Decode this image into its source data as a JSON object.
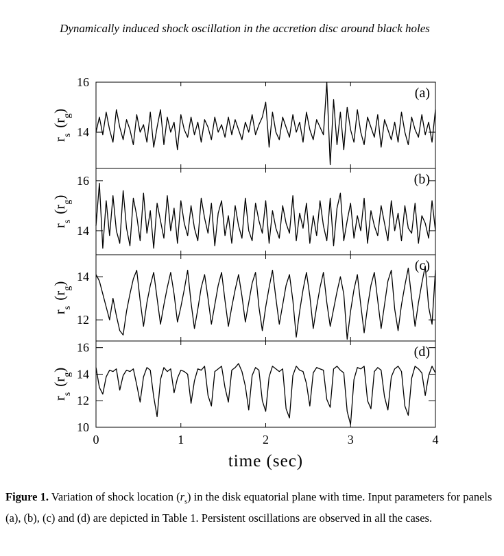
{
  "header": {
    "title": "Dynamically induced shock oscillation in the accretion disc around black holes"
  },
  "chart_data": [
    {
      "type": "line",
      "label": "(a)",
      "ylabel": [
        "r",
        "s",
        "(r",
        "g",
        ")"
      ],
      "xlim": [
        0,
        4
      ],
      "xticks": [
        0,
        1,
        2,
        3,
        4
      ],
      "ylim": [
        12.55,
        16
      ],
      "yticks": [
        14,
        16
      ],
      "x": [
        0,
        0.04,
        0.08,
        0.12,
        0.16,
        0.2,
        0.24,
        0.28,
        0.32,
        0.36,
        0.4,
        0.44,
        0.48,
        0.52,
        0.56,
        0.6,
        0.64,
        0.68,
        0.72,
        0.76,
        0.8,
        0.84,
        0.88,
        0.92,
        0.96,
        1,
        1.04,
        1.08,
        1.12,
        1.16,
        1.2,
        1.24,
        1.28,
        1.32,
        1.36,
        1.4,
        1.44,
        1.48,
        1.52,
        1.56,
        1.6,
        1.64,
        1.68,
        1.72,
        1.76,
        1.8,
        1.84,
        1.88,
        1.92,
        1.96,
        2,
        2.04,
        2.08,
        2.12,
        2.16,
        2.2,
        2.24,
        2.28,
        2.32,
        2.36,
        2.4,
        2.44,
        2.48,
        2.52,
        2.56,
        2.6,
        2.64,
        2.68,
        2.72,
        2.76,
        2.8,
        2.84,
        2.88,
        2.92,
        2.96,
        3,
        3.04,
        3.08,
        3.12,
        3.16,
        3.2,
        3.24,
        3.28,
        3.32,
        3.36,
        3.4,
        3.44,
        3.48,
        3.52,
        3.56,
        3.6,
        3.64,
        3.68,
        3.72,
        3.76,
        3.8,
        3.84,
        3.88,
        3.92,
        3.96,
        4
      ],
      "series": [
        {
          "color": "#000000",
          "values": [
            14.0,
            14.6,
            13.9,
            14.8,
            14.1,
            13.6,
            14.9,
            14.2,
            13.7,
            14.5,
            14.1,
            13.5,
            14.7,
            14.0,
            14.3,
            13.6,
            14.8,
            13.4,
            14.2,
            14.9,
            13.5,
            14.6,
            14.0,
            14.4,
            13.3,
            14.7,
            14.1,
            13.8,
            14.6,
            13.9,
            14.4,
            13.6,
            14.5,
            14.2,
            13.7,
            14.6,
            14.0,
            14.3,
            13.8,
            14.6,
            13.9,
            14.5,
            14.1,
            13.7,
            14.4,
            14.0,
            14.7,
            13.9,
            14.3,
            14.6,
            15.2,
            13.4,
            14.8,
            14.0,
            13.7,
            14.6,
            14.2,
            13.8,
            14.7,
            14.0,
            14.4,
            13.6,
            14.8,
            14.1,
            13.7,
            14.5,
            14.2,
            13.9,
            16.0,
            12.7,
            15.3,
            13.5,
            14.8,
            13.3,
            15.0,
            14.1,
            13.6,
            14.9,
            14.0,
            13.5,
            14.6,
            14.2,
            13.8,
            14.7,
            13.4,
            14.5,
            14.1,
            13.7,
            14.4,
            13.6,
            14.8,
            14.0,
            13.5,
            14.6,
            14.1,
            13.8,
            14.7,
            13.9,
            14.4,
            13.6,
            14.9
          ]
        }
      ]
    },
    {
      "type": "line",
      "label": "(b)",
      "ylabel": [
        "r",
        "s",
        "(r",
        "g",
        ")"
      ],
      "xlim": [
        0,
        4
      ],
      "xticks": [
        0,
        1,
        2,
        3,
        4
      ],
      "ylim": [
        13.04,
        16.49
      ],
      "yticks": [
        14,
        16
      ],
      "x": [
        0,
        0.04,
        0.08,
        0.12,
        0.16,
        0.2,
        0.24,
        0.28,
        0.32,
        0.36,
        0.4,
        0.44,
        0.48,
        0.52,
        0.56,
        0.6,
        0.64,
        0.68,
        0.72,
        0.76,
        0.8,
        0.84,
        0.88,
        0.92,
        0.96,
        1,
        1.04,
        1.08,
        1.12,
        1.16,
        1.2,
        1.24,
        1.28,
        1.32,
        1.36,
        1.4,
        1.44,
        1.48,
        1.52,
        1.56,
        1.6,
        1.64,
        1.68,
        1.72,
        1.76,
        1.8,
        1.84,
        1.88,
        1.92,
        1.96,
        2,
        2.04,
        2.08,
        2.12,
        2.16,
        2.2,
        2.24,
        2.28,
        2.32,
        2.36,
        2.4,
        2.44,
        2.48,
        2.52,
        2.56,
        2.6,
        2.64,
        2.68,
        2.72,
        2.76,
        2.8,
        2.84,
        2.88,
        2.92,
        2.96,
        3,
        3.04,
        3.08,
        3.12,
        3.16,
        3.2,
        3.24,
        3.28,
        3.32,
        3.36,
        3.4,
        3.44,
        3.48,
        3.52,
        3.56,
        3.6,
        3.64,
        3.68,
        3.72,
        3.76,
        3.8,
        3.84,
        3.88,
        3.92,
        3.96,
        4
      ],
      "series": [
        {
          "color": "#000000",
          "values": [
            14.2,
            15.9,
            13.3,
            15.2,
            13.8,
            15.4,
            14.0,
            13.5,
            15.6,
            14.1,
            13.4,
            15.3,
            14.6,
            13.6,
            15.5,
            13.9,
            14.8,
            13.3,
            15.1,
            14.4,
            13.7,
            15.4,
            14.0,
            14.9,
            13.5,
            15.2,
            14.3,
            13.8,
            15.0,
            14.1,
            13.6,
            15.3,
            14.5,
            13.9,
            15.1,
            13.4,
            14.7,
            15.2,
            13.8,
            14.6,
            13.5,
            15.0,
            14.2,
            13.7,
            15.3,
            14.0,
            13.6,
            15.1,
            14.4,
            13.9,
            15.2,
            13.5,
            14.8,
            14.1,
            13.7,
            15.0,
            14.3,
            13.9,
            15.4,
            13.6,
            14.7,
            14.1,
            15.1,
            13.5,
            14.6,
            13.8,
            15.2,
            14.2,
            13.6,
            15.3,
            13.4,
            14.9,
            15.5,
            13.6,
            14.4,
            15.1,
            13.7,
            14.6,
            14.0,
            15.3,
            13.5,
            14.8,
            14.2,
            13.8,
            15.0,
            14.3,
            13.6,
            15.2,
            14.0,
            14.7,
            13.6,
            15.0,
            14.1,
            13.9,
            15.1,
            13.5,
            14.6,
            14.3,
            13.7,
            15.2,
            14.0
          ]
        }
      ]
    },
    {
      "type": "line",
      "label": "(c)",
      "ylabel": [
        "r",
        "s",
        "(r",
        "g",
        ")"
      ],
      "xlim": [
        0,
        4
      ],
      "xticks": [
        0,
        1,
        2,
        3,
        4
      ],
      "ylim": [
        11.02,
        15.02
      ],
      "yticks": [
        12,
        14
      ],
      "x": [
        0,
        0.04,
        0.08,
        0.12,
        0.16,
        0.2,
        0.24,
        0.28,
        0.32,
        0.36,
        0.4,
        0.44,
        0.48,
        0.52,
        0.56,
        0.6,
        0.64,
        0.68,
        0.72,
        0.76,
        0.8,
        0.84,
        0.88,
        0.92,
        0.96,
        1,
        1.04,
        1.08,
        1.12,
        1.16,
        1.2,
        1.24,
        1.28,
        1.32,
        1.36,
        1.4,
        1.44,
        1.48,
        1.52,
        1.56,
        1.6,
        1.64,
        1.68,
        1.72,
        1.76,
        1.8,
        1.84,
        1.88,
        1.92,
        1.96,
        2,
        2.04,
        2.08,
        2.12,
        2.16,
        2.2,
        2.24,
        2.28,
        2.32,
        2.36,
        2.4,
        2.44,
        2.48,
        2.52,
        2.56,
        2.6,
        2.64,
        2.68,
        2.72,
        2.76,
        2.8,
        2.84,
        2.88,
        2.92,
        2.96,
        3,
        3.04,
        3.08,
        3.12,
        3.16,
        3.2,
        3.24,
        3.28,
        3.32,
        3.36,
        3.4,
        3.44,
        3.48,
        3.52,
        3.56,
        3.6,
        3.64,
        3.68,
        3.72,
        3.76,
        3.8,
        3.84,
        3.88,
        3.92,
        3.96,
        4
      ],
      "series": [
        {
          "color": "#000000",
          "values": [
            14.1,
            13.8,
            13.2,
            12.6,
            12.0,
            13.0,
            12.2,
            11.5,
            11.3,
            12.4,
            13.2,
            13.9,
            14.3,
            12.9,
            11.7,
            12.8,
            13.6,
            14.2,
            13.0,
            11.8,
            12.7,
            13.5,
            14.2,
            13.2,
            11.9,
            12.6,
            13.4,
            14.3,
            12.8,
            11.6,
            12.5,
            13.5,
            14.1,
            13.0,
            11.8,
            12.7,
            13.6,
            14.2,
            12.9,
            11.7,
            12.6,
            13.4,
            14.1,
            13.1,
            11.9,
            12.8,
            13.7,
            14.2,
            12.6,
            11.5,
            12.6,
            13.5,
            14.3,
            13.0,
            11.8,
            12.7,
            13.6,
            14.1,
            12.9,
            11.2,
            12.4,
            13.4,
            14.2,
            13.1,
            11.6,
            12.6,
            13.5,
            14.2,
            12.8,
            11.7,
            12.5,
            13.3,
            14.0,
            13.2,
            11.1,
            12.4,
            13.4,
            14.1,
            12.7,
            11.4,
            12.6,
            13.6,
            14.2,
            12.9,
            11.6,
            12.7,
            13.8,
            14.3,
            12.5,
            11.5,
            12.7,
            13.6,
            14.4,
            13.0,
            11.7,
            12.8,
            13.7,
            14.5,
            12.6,
            11.8,
            14.3
          ]
        }
      ]
    },
    {
      "type": "line",
      "label": "(d)",
      "ylabel": [
        "r",
        "s",
        "(r",
        "g",
        ")"
      ],
      "xlabel": "time (sec)",
      "xlim": [
        0,
        4
      ],
      "xticks": [
        0,
        1,
        2,
        3,
        4
      ],
      "ylim": [
        10,
        16.5
      ],
      "yticks": [
        10,
        12,
        14,
        16
      ],
      "x": [
        0,
        0.04,
        0.08,
        0.12,
        0.16,
        0.2,
        0.24,
        0.28,
        0.32,
        0.36,
        0.4,
        0.44,
        0.48,
        0.52,
        0.56,
        0.6,
        0.64,
        0.68,
        0.72,
        0.76,
        0.8,
        0.84,
        0.88,
        0.92,
        0.96,
        1,
        1.04,
        1.08,
        1.12,
        1.16,
        1.2,
        1.24,
        1.28,
        1.32,
        1.36,
        1.4,
        1.44,
        1.48,
        1.52,
        1.56,
        1.6,
        1.64,
        1.68,
        1.72,
        1.76,
        1.8,
        1.84,
        1.88,
        1.92,
        1.96,
        2,
        2.04,
        2.08,
        2.12,
        2.16,
        2.2,
        2.24,
        2.28,
        2.32,
        2.36,
        2.4,
        2.44,
        2.48,
        2.52,
        2.56,
        2.6,
        2.64,
        2.68,
        2.72,
        2.76,
        2.8,
        2.84,
        2.88,
        2.92,
        2.96,
        3,
        3.04,
        3.08,
        3.12,
        3.16,
        3.2,
        3.24,
        3.28,
        3.32,
        3.36,
        3.4,
        3.44,
        3.48,
        3.52,
        3.56,
        3.6,
        3.64,
        3.68,
        3.72,
        3.76,
        3.8,
        3.84,
        3.88,
        3.92,
        3.96,
        4
      ],
      "series": [
        {
          "color": "#000000",
          "values": [
            14.5,
            13.0,
            12.5,
            13.8,
            14.3,
            14.2,
            14.4,
            12.8,
            13.9,
            14.3,
            14.2,
            14.4,
            13.2,
            11.9,
            13.8,
            14.5,
            14.3,
            12.3,
            10.8,
            13.6,
            14.5,
            14.2,
            14.4,
            12.6,
            13.7,
            14.3,
            14.2,
            14.0,
            11.8,
            13.5,
            14.4,
            14.3,
            14.6,
            12.4,
            11.6,
            14.2,
            14.4,
            14.6,
            13.0,
            11.9,
            14.3,
            14.5,
            14.8,
            14.2,
            13.1,
            11.3,
            13.9,
            14.5,
            14.3,
            12.0,
            11.2,
            13.8,
            14.6,
            14.4,
            14.2,
            14.4,
            11.4,
            10.7,
            13.9,
            14.6,
            14.3,
            14.2,
            13.3,
            11.6,
            14.1,
            14.5,
            14.4,
            14.3,
            12.1,
            11.5,
            14.4,
            14.6,
            14.3,
            14.1,
            11.2,
            10.2,
            13.6,
            14.5,
            14.4,
            14.6,
            12.0,
            11.4,
            14.2,
            14.5,
            14.3,
            12.3,
            11.3,
            13.8,
            14.4,
            14.6,
            14.2,
            11.6,
            10.9,
            13.7,
            14.6,
            14.4,
            14.1,
            12.4,
            13.9,
            14.6,
            14.1
          ]
        }
      ]
    }
  ],
  "caption": {
    "label": "Figure 1.",
    "parts": [
      "Variation of shock location (",
      "r",
      "s",
      ") in the disk equatorial plane with time. Input parameters for panels (a), (b), (c) and (d) are depicted in Table 1. Persistent oscillations are observed in all the cases."
    ]
  }
}
